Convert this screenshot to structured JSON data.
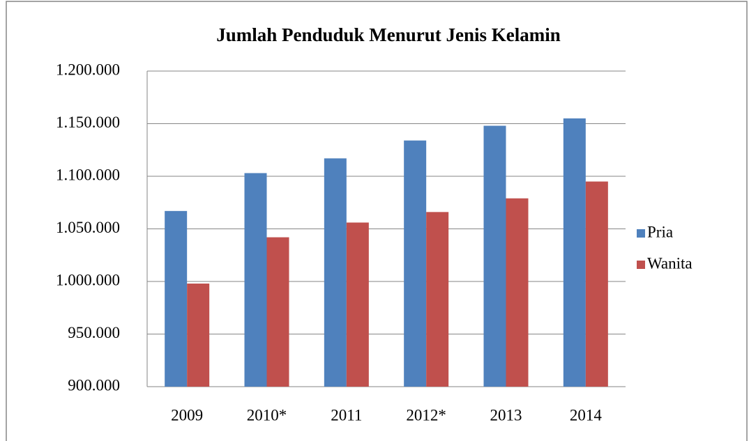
{
  "chart_data": {
    "type": "bar",
    "title": "Jumlah Penduduk Menurut Jenis Kelamin",
    "categories": [
      "2009",
      "2010*",
      "2011",
      "2012*",
      "2013",
      "2014"
    ],
    "series": [
      {
        "name": "Pria",
        "color": "#4f81bd",
        "values": [
          1067000,
          1103000,
          1117000,
          1134000,
          1148000,
          1155000
        ]
      },
      {
        "name": "Wanita",
        "color": "#c0504d",
        "values": [
          998000,
          1042000,
          1056000,
          1066000,
          1079000,
          1095000
        ]
      }
    ],
    "ylim": [
      900000,
      1200000
    ],
    "yticks": [
      {
        "value": 900000,
        "label": "900.000"
      },
      {
        "value": 950000,
        "label": "950.000"
      },
      {
        "value": 1000000,
        "label": "1.000.000"
      },
      {
        "value": 1050000,
        "label": "1.050.000"
      },
      {
        "value": 1100000,
        "label": "1.100.000"
      },
      {
        "value": 1150000,
        "label": "1.150.000"
      },
      {
        "value": 1200000,
        "label": "1.200.000"
      }
    ],
    "grid": true,
    "legend": "right"
  }
}
